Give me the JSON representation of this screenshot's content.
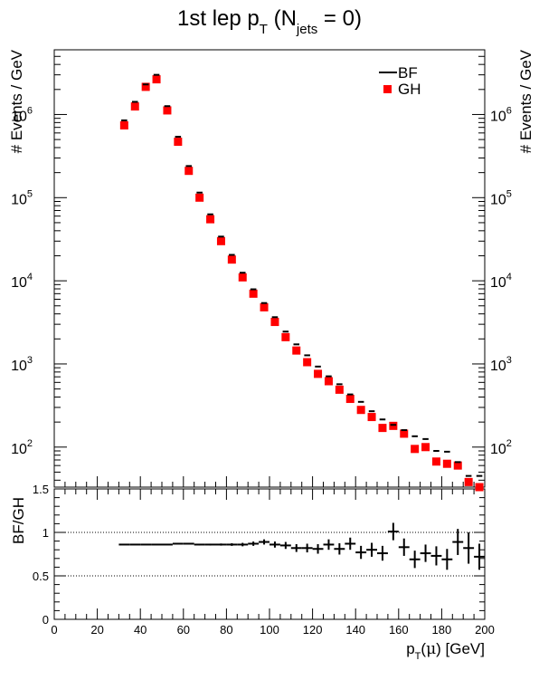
{
  "title": {
    "main": "1st lep p",
    "sub_T": "T",
    "paren_open": " (N",
    "sub_jets": "jets",
    "paren_close": " = 0)"
  },
  "chart_data": [
    {
      "type": "scatter",
      "panel": "top",
      "ylabel": "# Events / GeV",
      "yscale": "log",
      "ylim": [
        33,
        6000000
      ],
      "xlim": [
        0,
        200
      ],
      "legend": {
        "placement": "top-right",
        "entries": [
          {
            "name": "BF",
            "marker": "line",
            "color": "#000000"
          },
          {
            "name": "GH",
            "marker": "square",
            "color": "#ff0000"
          }
        ]
      },
      "yticks": [
        {
          "base": "10",
          "exp": "2",
          "value": 100
        },
        {
          "base": "10",
          "exp": "3",
          "value": 1000
        },
        {
          "base": "10",
          "exp": "4",
          "value": 10000
        },
        {
          "base": "10",
          "exp": "5",
          "value": 100000
        },
        {
          "base": "10",
          "exp": "6",
          "value": 1000000
        }
      ],
      "x": [
        32.5,
        37.5,
        42.5,
        47.5,
        52.5,
        57.5,
        62.5,
        67.5,
        72.5,
        77.5,
        82.5,
        87.5,
        92.5,
        97.5,
        102.5,
        107.5,
        112.5,
        117.5,
        122.5,
        127.5,
        132.5,
        137.5,
        142.5,
        147.5,
        152.5,
        157.5,
        162.5,
        167.5,
        172.5,
        177.5,
        182.5,
        187.5,
        192.5,
        197.5
      ],
      "series": [
        {
          "name": "BF",
          "values": [
            850000,
            1420000,
            2300000,
            3000000,
            1260000,
            540000,
            240000,
            115000,
            63000,
            34000,
            20500,
            12500,
            7900,
            5400,
            3650,
            2450,
            1720,
            1270,
            930,
            710,
            570,
            430,
            350,
            270,
            215,
            185,
            160,
            135,
            125,
            90,
            88,
            66,
            45,
            45
          ]
        },
        {
          "name": "GH",
          "values": [
            740000,
            1250000,
            2150000,
            2650000,
            1120000,
            470000,
            210000,
            100000,
            55000,
            30000,
            18000,
            11000,
            7000,
            4800,
            3200,
            2100,
            1450,
            1050,
            760,
            620,
            490,
            380,
            280,
            230,
            170,
            180,
            145,
            95,
            100,
            67,
            63,
            60,
            38,
            33
          ]
        }
      ]
    },
    {
      "type": "scatter",
      "panel": "bottom",
      "xlabel": "p",
      "xlabel_sub": "T",
      "xlabel_paren_open": "(",
      "xlabel_mu": "μ",
      "xlabel_tail": ") [GeV]",
      "ylabel": "BF/GH",
      "ylim": [
        0,
        1.5
      ],
      "xlim": [
        0,
        200
      ],
      "yticks": [
        "0",
        "0.5",
        "1",
        "1.5"
      ],
      "xticks": [
        "0",
        "20",
        "40",
        "60",
        "80",
        "100",
        "120",
        "140",
        "160",
        "180",
        "200"
      ],
      "reference_lines": [
        0.5,
        1.0
      ],
      "x": [
        32.5,
        37.5,
        42.5,
        47.5,
        52.5,
        57.5,
        62.5,
        67.5,
        72.5,
        77.5,
        82.5,
        87.5,
        92.5,
        97.5,
        102.5,
        107.5,
        112.5,
        117.5,
        122.5,
        127.5,
        132.5,
        137.5,
        142.5,
        147.5,
        152.5,
        157.5,
        162.5,
        167.5,
        172.5,
        177.5,
        182.5,
        187.5,
        192.5,
        197.5
      ],
      "values": [
        0.86,
        0.86,
        0.86,
        0.86,
        0.86,
        0.87,
        0.87,
        0.86,
        0.86,
        0.86,
        0.86,
        0.86,
        0.87,
        0.89,
        0.86,
        0.85,
        0.82,
        0.82,
        0.81,
        0.86,
        0.81,
        0.87,
        0.77,
        0.8,
        0.76,
        1.01,
        0.83,
        0.69,
        0.76,
        0.73,
        0.69,
        0.89,
        0.82,
        0.72
      ],
      "errors": [
        0.004,
        0.004,
        0.004,
        0.004,
        0.004,
        0.005,
        0.006,
        0.008,
        0.01,
        0.012,
        0.015,
        0.02,
        0.025,
        0.03,
        0.035,
        0.04,
        0.045,
        0.05,
        0.055,
        0.06,
        0.065,
        0.07,
        0.075,
        0.08,
        0.085,
        0.1,
        0.1,
        0.1,
        0.1,
        0.11,
        0.12,
        0.15,
        0.18,
        0.15
      ]
    }
  ]
}
